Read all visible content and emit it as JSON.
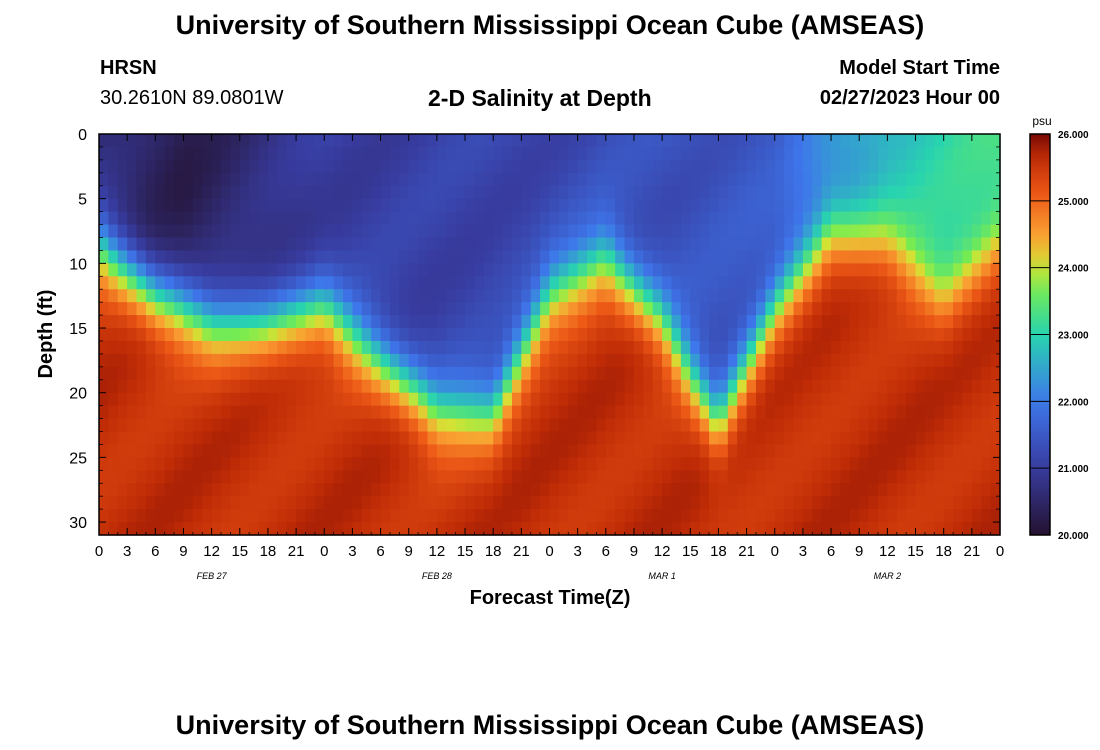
{
  "header": {
    "title": "University of Southern Mississippi Ocean Cube (AMSEAS)",
    "station_name": "HRSN",
    "station_coords": "30.2610N  89.0801W",
    "plot_title": "2-D Salinity at Depth",
    "model_start_label": "Model Start Time",
    "model_start_value": "02/27/2023 Hour 00"
  },
  "footer": {
    "title": "University of Southern Mississippi Ocean Cube (AMSEAS)"
  },
  "chart_data": {
    "type": "heatmap",
    "title": "2-D Salinity at Depth",
    "xlabel": "Forecast Time(Z)",
    "ylabel": "Depth (ft)",
    "x_tick_labels": [
      "0",
      "3",
      "6",
      "9",
      "12",
      "15",
      "18",
      "21",
      "0",
      "3",
      "6",
      "9",
      "12",
      "15",
      "18",
      "21",
      "0",
      "3",
      "6",
      "9",
      "12",
      "15",
      "18",
      "21",
      "0",
      "3",
      "6",
      "9",
      "12",
      "15",
      "18",
      "21",
      "0"
    ],
    "x_range_hours": [
      0,
      96
    ],
    "y_ticks": [
      0,
      5,
      10,
      15,
      20,
      25,
      30
    ],
    "y_range_ft": [
      0,
      31
    ],
    "date_labels": [
      {
        "text": "FEB 27",
        "hour": 12
      },
      {
        "text": "FEB 28",
        "hour": 36
      },
      {
        "text": "MAR 1",
        "hour": 60
      },
      {
        "text": "MAR 2",
        "hour": 84
      }
    ],
    "colorbar": {
      "unit": "psu",
      "min": 20.0,
      "max": 26.0,
      "tick_labels": [
        "26.000",
        "25.000",
        "24.000",
        "23.000",
        "22.000",
        "21.000",
        "20.000"
      ]
    },
    "halocline_depth_ft": {
      "hours": [
        0,
        6,
        12,
        18,
        24,
        30,
        36,
        42,
        48,
        54,
        60,
        66,
        72,
        78,
        84,
        90,
        96
      ],
      "depth": [
        8.5,
        12.5,
        14.5,
        14.5,
        13.5,
        17.5,
        21.5,
        21.5,
        12.5,
        9.5,
        14.5,
        22.5,
        13.5,
        7.5,
        8.5,
        12.5,
        8.5
      ]
    },
    "surface_salinity_psu": {
      "hours": [
        0,
        9,
        24,
        48,
        72,
        78,
        84,
        96
      ],
      "values": [
        20.6,
        20.3,
        21.0,
        21.2,
        21.5,
        22.2,
        22.8,
        23.2
      ]
    },
    "deep_salinity_psu": 25.6
  }
}
